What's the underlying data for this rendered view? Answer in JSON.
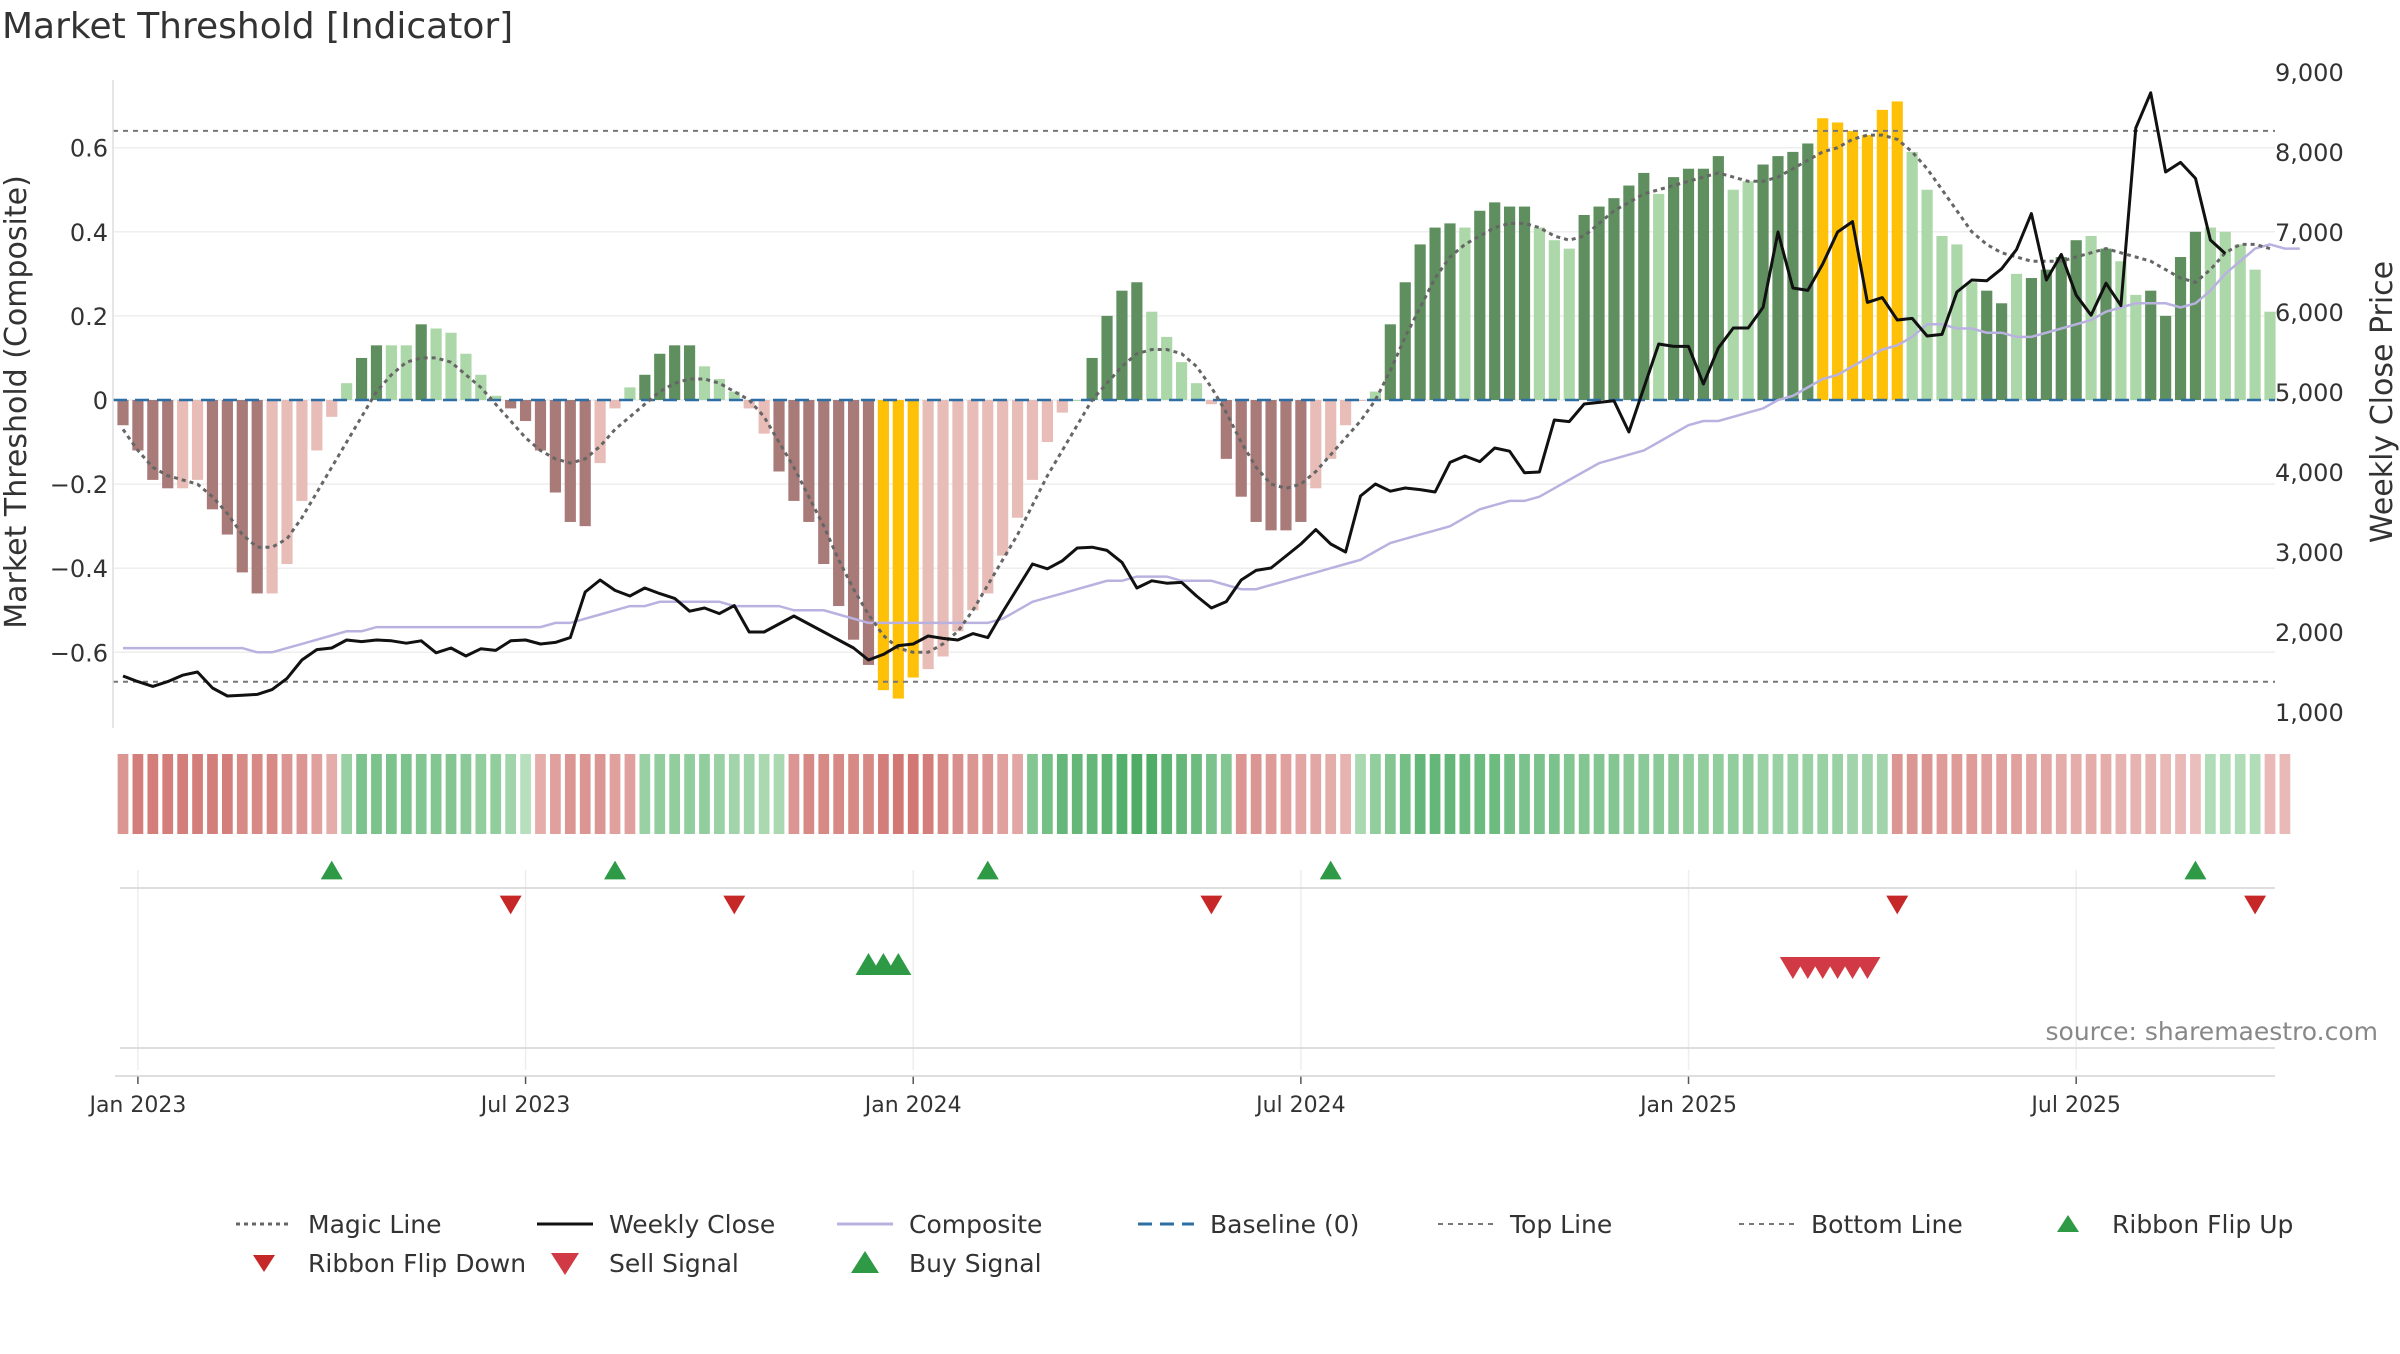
{
  "chart_data": {
    "type": "bar",
    "title": "Market Threshold [Indicator]",
    "ylabel_left": "Market Threshold (Composite)",
    "ylabel_right": "Weekly Close Price",
    "source": "source: sharemaestro.com",
    "left_axis": {
      "range": [
        -0.78,
        0.78
      ],
      "ticks": [
        -0.6,
        -0.4,
        -0.2,
        0,
        0.2,
        0.4,
        0.6
      ],
      "tick_labels": [
        "−0.6",
        "−0.4",
        "−0.2",
        "0",
        "0.2",
        "0.4",
        "0.6"
      ]
    },
    "right_axis": {
      "range": [
        800,
        9000
      ],
      "ticks": [
        1000,
        2000,
        3000,
        4000,
        5000,
        6000,
        7000,
        8000,
        9000
      ],
      "tick_labels": [
        "1,000",
        "2,000",
        "3,000",
        "4,000",
        "5,000",
        "6,000",
        "7,000",
        "8,000",
        "9,000"
      ]
    },
    "x_ticks": [
      "Jan 2023",
      "Jul 2023",
      "Jan 2024",
      "Jul 2024",
      "Jan 2025",
      "Jul 2025"
    ],
    "x_tick_weeks": [
      1,
      27,
      53,
      79,
      105,
      131
    ],
    "top_line": 0.64,
    "bottom_line": -0.67,
    "grid": true,
    "legend_position": "bottom",
    "colors": {
      "bar_pos_strong": "#5f8f5f",
      "bar_pos_weak": "#acd7a8",
      "bar_neg_strong": "#a87a78",
      "bar_neg_weak": "#e8bdb8",
      "bar_extreme": "#ffc107",
      "magic_line": "#666666",
      "weekly_close": "#111111",
      "composite": "#b9b2e0",
      "baseline": "#2d6fa5",
      "threshold": "#777777",
      "buy": "#2e9a46",
      "sell": "#d13a44",
      "flip_down": "#c62828"
    },
    "composite_bars": [
      -0.06,
      -0.12,
      -0.19,
      -0.21,
      -0.21,
      -0.19,
      -0.26,
      -0.32,
      -0.41,
      -0.46,
      -0.46,
      -0.39,
      -0.24,
      -0.12,
      -0.04,
      0.04,
      0.1,
      0.13,
      0.13,
      0.13,
      0.18,
      0.17,
      0.16,
      0.11,
      0.06,
      0.01,
      -0.02,
      -0.05,
      -0.12,
      -0.22,
      -0.29,
      -0.3,
      -0.15,
      -0.02,
      0.03,
      0.06,
      0.11,
      0.13,
      0.13,
      0.08,
      0.05,
      0.02,
      -0.02,
      -0.08,
      -0.17,
      -0.24,
      -0.29,
      -0.39,
      -0.49,
      -0.57,
      -0.63,
      -0.69,
      -0.71,
      -0.66,
      -0.64,
      -0.61,
      -0.55,
      -0.5,
      -0.46,
      -0.37,
      -0.28,
      -0.19,
      -0.1,
      -0.03,
      0.0,
      0.1,
      0.2,
      0.26,
      0.28,
      0.21,
      0.15,
      0.09,
      0.04,
      -0.01,
      -0.14,
      -0.23,
      -0.29,
      -0.31,
      -0.31,
      -0.29,
      -0.21,
      -0.14,
      -0.06,
      0.0,
      0.02,
      0.18,
      0.28,
      0.37,
      0.41,
      0.42,
      0.41,
      0.45,
      0.47,
      0.46,
      0.46,
      0.41,
      0.38,
      0.36,
      0.44,
      0.46,
      0.48,
      0.51,
      0.54,
      0.49,
      0.53,
      0.55,
      0.55,
      0.58,
      0.5,
      0.52,
      0.56,
      0.58,
      0.59,
      0.61,
      0.67,
      0.66,
      0.64,
      0.63,
      0.69,
      0.71,
      0.59,
      0.5,
      0.39,
      0.37,
      0.28,
      0.26,
      0.23,
      0.3,
      0.29,
      0.31,
      0.34,
      0.38,
      0.39,
      0.36,
      0.33,
      0.25,
      0.26,
      0.2,
      0.34,
      0.4,
      0.41,
      0.4,
      0.37,
      0.31,
      0.21
    ],
    "bar_categories": [
      "ns",
      "ns",
      "ns",
      "ns",
      "nw",
      "nw",
      "ns",
      "ns",
      "ns",
      "ns",
      "nw",
      "nw",
      "nw",
      "nw",
      "nw",
      "pw",
      "ps",
      "ps",
      "pw",
      "pw",
      "ps",
      "pw",
      "pw",
      "pw",
      "pw",
      "pw",
      "ns",
      "ns",
      "ns",
      "ns",
      "ns",
      "ns",
      "nw",
      "nw",
      "pw",
      "ps",
      "ps",
      "ps",
      "ps",
      "pw",
      "pw",
      "pw",
      "nw",
      "nw",
      "ns",
      "ns",
      "ns",
      "ns",
      "ns",
      "ns",
      "ns",
      "ex",
      "ex",
      "ex",
      "nw",
      "nw",
      "nw",
      "nw",
      "nw",
      "nw",
      "nw",
      "nw",
      "nw",
      "nw",
      "pw",
      "ps",
      "ps",
      "ps",
      "ps",
      "pw",
      "pw",
      "pw",
      "pw",
      "nw",
      "ns",
      "ns",
      "ns",
      "ns",
      "ns",
      "ns",
      "nw",
      "nw",
      "nw",
      "nw",
      "pw",
      "ps",
      "ps",
      "ps",
      "ps",
      "ps",
      "pw",
      "ps",
      "ps",
      "ps",
      "ps",
      "pw",
      "pw",
      "pw",
      "ps",
      "ps",
      "ps",
      "ps",
      "ps",
      "pw",
      "ps",
      "ps",
      "ps",
      "ps",
      "pw",
      "pw",
      "ps",
      "ps",
      "ps",
      "ps",
      "ex",
      "ex",
      "ex",
      "ex",
      "ex",
      "ex",
      "pw",
      "pw",
      "pw",
      "pw",
      "pw",
      "ps",
      "ps",
      "pw",
      "ps",
      "ps",
      "ps",
      "ps",
      "pw",
      "ps",
      "pw",
      "pw",
      "ps",
      "ps",
      "ps",
      "ps",
      "pw",
      "pw",
      "pw"
    ],
    "magic_line": [
      -0.07,
      -0.12,
      -0.16,
      -0.18,
      -0.19,
      -0.2,
      -0.23,
      -0.27,
      -0.32,
      -0.35,
      -0.35,
      -0.33,
      -0.28,
      -0.22,
      -0.16,
      -0.1,
      -0.04,
      0.02,
      0.06,
      0.09,
      0.1,
      0.1,
      0.09,
      0.06,
      0.03,
      -0.01,
      -0.05,
      -0.09,
      -0.12,
      -0.14,
      -0.15,
      -0.14,
      -0.11,
      -0.07,
      -0.04,
      -0.01,
      0.02,
      0.04,
      0.05,
      0.05,
      0.04,
      0.02,
      0.0,
      -0.04,
      -0.1,
      -0.16,
      -0.23,
      -0.3,
      -0.38,
      -0.45,
      -0.51,
      -0.56,
      -0.59,
      -0.6,
      -0.6,
      -0.58,
      -0.55,
      -0.5,
      -0.44,
      -0.38,
      -0.32,
      -0.25,
      -0.18,
      -0.12,
      -0.06,
      0.0,
      0.04,
      0.08,
      0.11,
      0.12,
      0.12,
      0.11,
      0.08,
      0.03,
      -0.03,
      -0.1,
      -0.16,
      -0.2,
      -0.21,
      -0.2,
      -0.17,
      -0.13,
      -0.09,
      -0.05,
      0.0,
      0.07,
      0.15,
      0.22,
      0.29,
      0.34,
      0.37,
      0.39,
      0.41,
      0.42,
      0.42,
      0.41,
      0.39,
      0.38,
      0.39,
      0.42,
      0.45,
      0.47,
      0.49,
      0.5,
      0.51,
      0.52,
      0.53,
      0.54,
      0.53,
      0.52,
      0.52,
      0.53,
      0.55,
      0.57,
      0.59,
      0.6,
      0.62,
      0.63,
      0.63,
      0.62,
      0.59,
      0.55,
      0.5,
      0.45,
      0.4,
      0.37,
      0.35,
      0.34,
      0.33,
      0.33,
      0.33,
      0.34,
      0.35,
      0.36,
      0.35,
      0.34,
      0.33,
      0.31,
      0.29,
      0.28,
      0.31,
      0.35,
      0.37,
      0.37,
      0.36
    ],
    "weekly_close": [
      1450,
      1380,
      1320,
      1380,
      1460,
      1500,
      1300,
      1200,
      1210,
      1220,
      1280,
      1420,
      1650,
      1780,
      1800,
      1900,
      1880,
      1900,
      1890,
      1860,
      1890,
      1740,
      1800,
      1700,
      1790,
      1770,
      1890,
      1900,
      1850,
      1870,
      1930,
      2500,
      2650,
      2520,
      2450,
      2550,
      2480,
      2420,
      2260,
      2300,
      2230,
      2330,
      2000,
      2000,
      2100,
      2200,
      2100,
      2000,
      1900,
      1800,
      1650,
      1720,
      1830,
      1850,
      1950,
      1920,
      1900,
      1980,
      1930,
      2250,
      2550,
      2850,
      2790,
      2890,
      3050,
      3060,
      3020,
      2870,
      2550,
      2640,
      2610,
      2620,
      2450,
      2300,
      2380,
      2650,
      2770,
      2800,
      2950,
      3100,
      3280,
      3100,
      3000,
      3700,
      3850,
      3760,
      3800,
      3780,
      3750,
      4120,
      4200,
      4130,
      4300,
      4260,
      3990,
      4000,
      4650,
      4630,
      4850,
      4870,
      4890,
      4500,
      5050,
      5600,
      5570,
      5570,
      5100,
      5550,
      5800,
      5800,
      6060,
      7000,
      6300,
      6270,
      6600,
      7000,
      7130,
      6120,
      6180,
      5900,
      5920,
      5700,
      5720,
      6250,
      6400,
      6390,
      6540,
      6780,
      7230,
      6400,
      6720,
      6210,
      5960,
      6360,
      6080,
      8300,
      8740,
      7750,
      7870,
      7670,
      6900,
      6730
    ],
    "composite_line": [
      -0.59,
      -0.59,
      -0.59,
      -0.59,
      -0.59,
      -0.59,
      -0.59,
      -0.59,
      -0.59,
      -0.6,
      -0.6,
      -0.59,
      -0.58,
      -0.57,
      -0.56,
      -0.55,
      -0.55,
      -0.54,
      -0.54,
      -0.54,
      -0.54,
      -0.54,
      -0.54,
      -0.54,
      -0.54,
      -0.54,
      -0.54,
      -0.54,
      -0.54,
      -0.53,
      -0.53,
      -0.52,
      -0.51,
      -0.5,
      -0.49,
      -0.49,
      -0.48,
      -0.48,
      -0.48,
      -0.48,
      -0.48,
      -0.49,
      -0.49,
      -0.49,
      -0.49,
      -0.5,
      -0.5,
      -0.5,
      -0.51,
      -0.52,
      -0.53,
      -0.53,
      -0.53,
      -0.53,
      -0.53,
      -0.53,
      -0.53,
      -0.53,
      -0.53,
      -0.52,
      -0.5,
      -0.48,
      -0.47,
      -0.46,
      -0.45,
      -0.44,
      -0.43,
      -0.43,
      -0.42,
      -0.42,
      -0.42,
      -0.43,
      -0.43,
      -0.43,
      -0.44,
      -0.45,
      -0.45,
      -0.44,
      -0.43,
      -0.42,
      -0.41,
      -0.4,
      -0.39,
      -0.38,
      -0.36,
      -0.34,
      -0.33,
      -0.32,
      -0.31,
      -0.3,
      -0.28,
      -0.26,
      -0.25,
      -0.24,
      -0.24,
      -0.23,
      -0.21,
      -0.19,
      -0.17,
      -0.15,
      -0.14,
      -0.13,
      -0.12,
      -0.1,
      -0.08,
      -0.06,
      -0.05,
      -0.05,
      -0.04,
      -0.03,
      -0.02,
      0.0,
      0.01,
      0.03,
      0.05,
      0.06,
      0.08,
      0.1,
      0.12,
      0.13,
      0.15,
      0.18,
      0.18,
      0.17,
      0.17,
      0.16,
      0.16,
      0.15,
      0.15,
      0.16,
      0.17,
      0.18,
      0.19,
      0.21,
      0.22,
      0.23,
      0.23,
      0.23,
      0.22,
      0.23,
      0.26,
      0.3,
      0.33,
      0.36,
      0.37,
      0.36,
      0.36
    ],
    "ribbon": [
      -0.55,
      -0.75,
      -0.75,
      -0.75,
      -0.75,
      -0.75,
      -0.75,
      -0.75,
      -0.65,
      -0.65,
      -0.65,
      -0.55,
      -0.55,
      -0.45,
      -0.35,
      0.4,
      0.6,
      0.6,
      0.6,
      0.6,
      0.55,
      0.55,
      0.55,
      0.5,
      0.45,
      0.45,
      0.35,
      0.2,
      -0.35,
      -0.45,
      -0.55,
      -0.55,
      -0.55,
      -0.45,
      -0.45,
      0.4,
      0.45,
      0.45,
      0.45,
      0.45,
      0.4,
      0.35,
      0.35,
      0.3,
      0.3,
      -0.55,
      -0.65,
      -0.65,
      -0.65,
      -0.65,
      -0.65,
      -0.75,
      -0.8,
      -0.8,
      -0.75,
      -0.65,
      -0.6,
      -0.55,
      -0.55,
      -0.45,
      -0.4,
      0.55,
      0.65,
      0.75,
      0.75,
      0.75,
      0.8,
      0.85,
      0.9,
      0.9,
      0.8,
      0.75,
      0.7,
      0.6,
      0.55,
      -0.55,
      -0.55,
      -0.5,
      -0.45,
      -0.4,
      -0.4,
      -0.35,
      -0.3,
      0.3,
      0.45,
      0.55,
      0.65,
      0.75,
      0.75,
      0.75,
      0.7,
      0.7,
      0.7,
      0.65,
      0.6,
      0.6,
      0.6,
      0.55,
      0.55,
      0.55,
      0.55,
      0.5,
      0.5,
      0.5,
      0.5,
      0.45,
      0.45,
      0.45,
      0.45,
      0.45,
      0.4,
      0.4,
      0.4,
      0.4,
      0.4,
      0.4,
      0.35,
      0.35,
      0.35,
      -0.55,
      -0.55,
      -0.55,
      -0.5,
      -0.5,
      -0.5,
      -0.45,
      -0.45,
      -0.45,
      -0.4,
      -0.4,
      -0.35,
      -0.35,
      -0.35,
      -0.35,
      -0.3,
      -0.3,
      -0.3,
      -0.25,
      -0.25,
      -0.2,
      0.25,
      0.25,
      0.25,
      0.25,
      -0.25,
      -0.25
    ],
    "flip_up_weeks": [
      14,
      33,
      58,
      81,
      139
    ],
    "flip_down_weeks": [
      26,
      41,
      73,
      119,
      143
    ],
    "buy_signal_weeks": [
      50,
      51,
      52
    ],
    "sell_signal_weeks": [
      112,
      113,
      114,
      115,
      116,
      117
    ],
    "legend": [
      "Magic Line",
      "Weekly Close",
      "Composite",
      "Baseline (0)",
      "Top Line",
      "Bottom Line",
      "Ribbon Flip Up",
      "Ribbon Flip Down",
      "Sell Signal",
      "Buy Signal"
    ]
  }
}
